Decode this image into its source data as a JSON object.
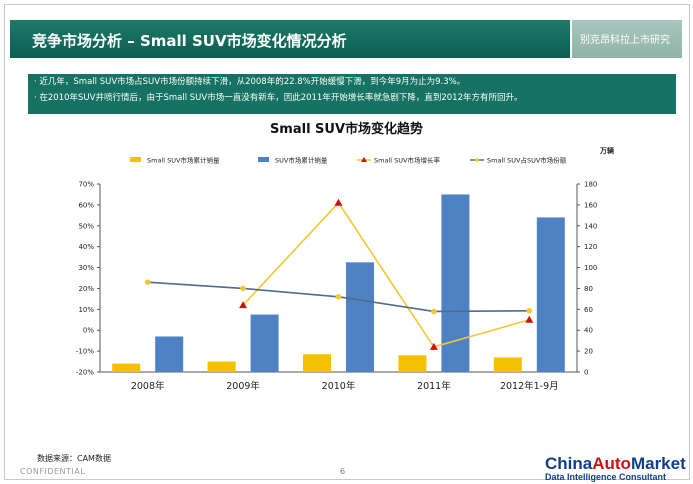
{
  "header": {
    "title": "竞争市场分析 – Small SUV市场变化情况分析",
    "right_label": "别克昂科拉上市研究"
  },
  "bullets": [
    "· 近几年，Small SUV市场占SUV市场份额持续下滑，从2008年的22.8%开始缓慢下滑，到今年9月为止为9.3%。",
    "· 在2010年SUV井喷行情后，由于Small SUV市场一直没有新车，因此2011年开始增长率就急剧下降，直到2012年方有所回升。"
  ],
  "chart_data": {
    "type": "bar",
    "title": "Small SUV市场变化趋势",
    "unit_right": "万辆",
    "categories": [
      "2008年",
      "2009年",
      "2010年",
      "2011年",
      "2012年1-9月"
    ],
    "y_left": {
      "min": -20,
      "max": 70,
      "ticks": [
        "70%",
        "60%",
        "50%",
        "40%",
        "30%",
        "20%",
        "10%",
        "0%",
        "-10%",
        "-20%"
      ]
    },
    "y_right": {
      "min": 0,
      "max": 180,
      "ticks": [
        "180",
        "160",
        "140",
        "120",
        "100",
        "80",
        "60",
        "40",
        "20",
        "0"
      ]
    },
    "legend_position": "top",
    "grid": false,
    "series": [
      {
        "name": "Small SUV市场累计销量",
        "type": "bar",
        "axis": "right",
        "color": "#f5c000",
        "values": [
          8,
          10,
          17,
          16,
          14
        ]
      },
      {
        "name": "SUV市场累计销量",
        "type": "bar",
        "axis": "right",
        "color": "#4f82c5",
        "values": [
          34,
          55,
          105,
          170,
          148
        ]
      },
      {
        "name": "Small SUV市场增长率",
        "type": "line",
        "axis": "left",
        "color": "#f2c832",
        "marker": "triangle",
        "marker_color": "#cc1111",
        "values": [
          null,
          12,
          61,
          -8,
          5
        ]
      },
      {
        "name": "Small SUV占SUV市场份额",
        "type": "line",
        "axis": "left",
        "color": "#4f6b8f",
        "marker": "circle",
        "marker_color": "#f2c832",
        "values": [
          23,
          20,
          16,
          9,
          9.3
        ]
      }
    ]
  },
  "footer": {
    "source": "数据来源：CAM数据",
    "confidential": "CONFIDENTIAL",
    "page": "6",
    "logo_part1": "China",
    "logo_part2": "Auto",
    "logo_part3": "Market",
    "logo_sub": "Data Intelligence Consultant"
  }
}
